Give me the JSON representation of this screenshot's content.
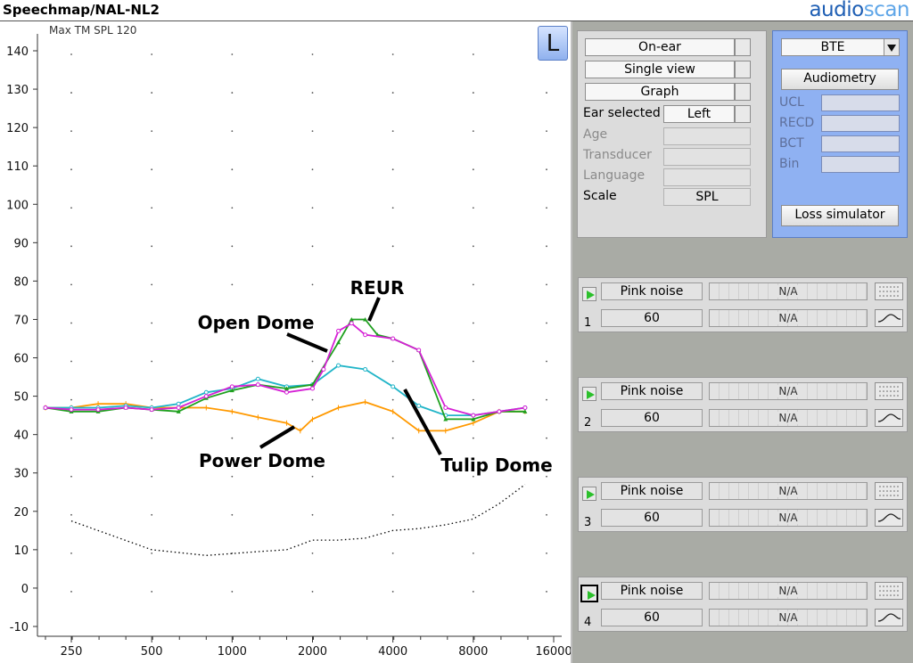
{
  "window": {
    "title": "Speechmap/NAL-NL2",
    "brand_part1": "audio",
    "brand_part2": "scan"
  },
  "graph": {
    "max_label": "Max TM SPL 120",
    "ear_badge": "L"
  },
  "chart_data": {
    "type": "line",
    "x_scale": "log",
    "x_ticks": [
      250,
      500,
      1000,
      2000,
      4000,
      8000,
      16000
    ],
    "y_ticks": [
      -10,
      0,
      10,
      20,
      30,
      40,
      50,
      60,
      70,
      80,
      90,
      100,
      110,
      120,
      130,
      140
    ],
    "ylim": [
      -10,
      140
    ],
    "grid": "dots",
    "series": [
      {
        "name": "",
        "color": "#ff9900",
        "style": "solid",
        "marker": "tick",
        "x": [
          200,
          250,
          315,
          400,
          500,
          630,
          800,
          1000,
          1250,
          1600,
          1800,
          2000,
          2500,
          3150,
          4000,
          5000,
          6300,
          8000,
          10000,
          12500
        ],
        "y": [
          47,
          47,
          48,
          48,
          47,
          47,
          47,
          46,
          44.5,
          43,
          41,
          44,
          47,
          48.5,
          46,
          41,
          41,
          43,
          46,
          46
        ]
      },
      {
        "name": "",
        "color": "#22b5c8",
        "style": "solid",
        "marker": "circle",
        "x": [
          200,
          250,
          315,
          400,
          500,
          630,
          800,
          1000,
          1250,
          1600,
          2000,
          2500,
          3150,
          4000,
          5000,
          6300,
          8000,
          10000,
          12500
        ],
        "y": [
          47,
          47,
          47,
          47.5,
          47,
          48,
          51,
          52,
          54.5,
          52.5,
          53,
          58,
          57,
          52.5,
          47.5,
          45,
          45,
          46,
          47
        ]
      },
      {
        "name": "",
        "color": "#1fa01f",
        "style": "solid",
        "marker": "triangle",
        "x": [
          200,
          250,
          315,
          400,
          500,
          630,
          800,
          1000,
          1250,
          1600,
          2000,
          2500,
          2800,
          3150,
          3500,
          4000,
          5000,
          6300,
          8000,
          10000,
          12500
        ],
        "y": [
          47,
          46,
          46,
          47,
          46.5,
          46,
          49.5,
          51.5,
          53,
          52,
          53,
          64,
          70,
          70,
          66,
          65,
          62,
          44,
          44,
          46,
          46
        ]
      },
      {
        "name": "",
        "color": "#d51fd5",
        "style": "solid",
        "marker": "circle",
        "x": [
          200,
          250,
          315,
          400,
          500,
          630,
          800,
          1000,
          1250,
          1600,
          2000,
          2200,
          2500,
          2800,
          3150,
          4000,
          5000,
          6300,
          8000,
          10000,
          12500
        ],
        "y": [
          47,
          46.5,
          46.5,
          47,
          46.5,
          47,
          50,
          52.5,
          53,
          51,
          52,
          57,
          67,
          69,
          66,
          65,
          62,
          47,
          45,
          46,
          47
        ]
      },
      {
        "name": "",
        "color": "#000000",
        "style": "dotted",
        "marker": "none",
        "x": [
          250,
          500,
          800,
          1000,
          1250,
          1600,
          2000,
          2500,
          3150,
          4000,
          5000,
          6300,
          8000,
          10000,
          12500
        ],
        "y": [
          17.5,
          10,
          8.5,
          9,
          9.5,
          10,
          12.5,
          12.5,
          13,
          15,
          15.5,
          16.5,
          18,
          22,
          27
        ]
      }
    ],
    "annotations": [
      {
        "text": "REUR"
      },
      {
        "text": "Open Dome"
      },
      {
        "text": "Power Dome"
      },
      {
        "text": "Tulip Dome"
      }
    ]
  },
  "settings_panel": {
    "mode": "On-ear",
    "view": "Single view",
    "display": "Graph",
    "ear_selected_label": "Ear selected",
    "ear_selected_value": "Left",
    "age_label": "Age",
    "transducer_label": "Transducer",
    "language_label": "Language",
    "scale_label": "Scale",
    "scale_value": "SPL"
  },
  "audiometry_panel": {
    "device_type": "BTE",
    "audiometry_button": "Audiometry",
    "ucl_label": "UCL",
    "recd_label": "RECD",
    "bct_label": "BCT",
    "bin_label": "Bin",
    "loss_sim_button": "Loss simulator"
  },
  "tests": [
    {
      "index": "1",
      "stimulus": "Pink noise",
      "level": "60",
      "result_top": "N/A",
      "result_bottom": "N/A"
    },
    {
      "index": "2",
      "stimulus": "Pink noise",
      "level": "60",
      "result_top": "N/A",
      "result_bottom": "N/A"
    },
    {
      "index": "3",
      "stimulus": "Pink noise",
      "level": "60",
      "result_top": "N/A",
      "result_bottom": "N/A"
    },
    {
      "index": "4",
      "stimulus": "Pink noise",
      "level": "60",
      "result_top": "N/A",
      "result_bottom": "N/A"
    }
  ]
}
